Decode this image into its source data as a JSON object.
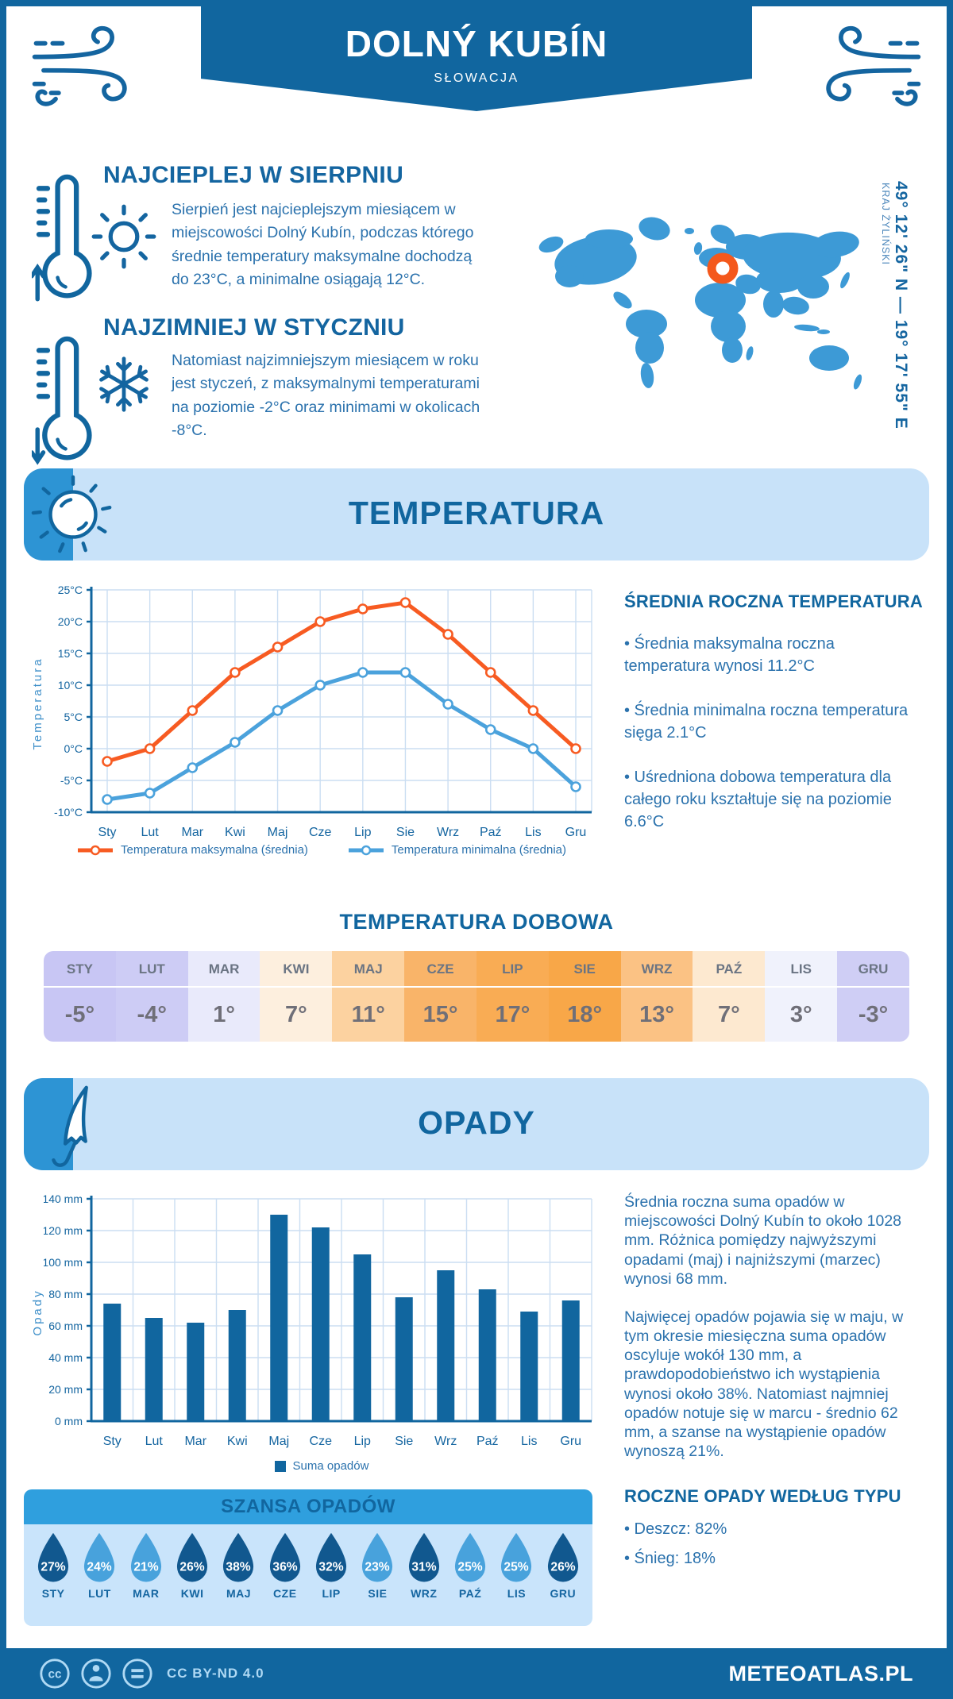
{
  "colors": {
    "brand_dark_blue": "#11669F",
    "heading_blue": "#1465A0",
    "body_text_blue": "#2B72AD",
    "band_bg": "#C8E2F9",
    "band_strip": "#2D94D4",
    "grid_line": "#CBDEF2",
    "axis_tick_text": "#1465A0",
    "rain_header_bar": "#2F9FDE",
    "rain_body_bg": "#C9E4FB"
  },
  "header": {
    "title": "DOLNÝ KUBÍN",
    "subtitle": "SŁOWACJA"
  },
  "highlights": [
    {
      "title": "NAJCIEPLEJ W SIERPNIU",
      "text": "Sierpień jest najcieplejszym miesiącem w miejscowości Dolný Kubín, podczas którego średnie temperatury maksymalne dochodzą do 23°C, a minimalne osiągają 12°C."
    },
    {
      "title": "NAJZIMNIEJ W STYCZNIU",
      "text": "Natomiast najzimniejszym miesiącem w roku jest styczeń, z maksymalnymi temperaturami na poziomie -2°C oraz minimami w okolicach -8°C."
    }
  ],
  "location": {
    "coordinates": "49° 12' 26\" N — 19° 17' 55\" E",
    "region": "KRAJ ŻYLIŃSKI",
    "map_color": "#3D9AD6",
    "marker_color": "#F4581C"
  },
  "sections": {
    "temperature_title": "TEMPERATURA",
    "precipitation_title": "OPADY"
  },
  "chart_data": [
    {
      "type": "line",
      "title": "Temperatura",
      "categories": [
        "Sty",
        "Lut",
        "Mar",
        "Kwi",
        "Maj",
        "Cze",
        "Lip",
        "Sie",
        "Wrz",
        "Paź",
        "Lis",
        "Gru"
      ],
      "series": [
        {
          "name": "Temperatura maksymalna (średnia)",
          "color": "#F75B22",
          "values": [
            -2,
            0,
            6,
            12,
            16,
            20,
            22,
            23,
            18,
            12,
            6,
            0
          ]
        },
        {
          "name": "Temperatura minimalna (średnia)",
          "color": "#4BA2DC",
          "values": [
            -8,
            -7,
            -3,
            1,
            6,
            10,
            12,
            12,
            7,
            3,
            0,
            -6
          ]
        }
      ],
      "ylabel": "Temperatura",
      "ylim": [
        -10,
        25
      ],
      "ytick_step": 5,
      "ytick_suffix": "°C",
      "grid": true,
      "legend_position": "bottom"
    },
    {
      "type": "bar",
      "title": "Opady",
      "categories": [
        "Sty",
        "Lut",
        "Mar",
        "Kwi",
        "Maj",
        "Cze",
        "Lip",
        "Sie",
        "Wrz",
        "Paź",
        "Lis",
        "Gru"
      ],
      "series": [
        {
          "name": "Suma opadów",
          "color": "#11669F",
          "values": [
            74,
            65,
            62,
            70,
            130,
            122,
            105,
            78,
            95,
            83,
            69,
            76
          ]
        }
      ],
      "ylabel": "Opady",
      "ylim": [
        0,
        140
      ],
      "ytick_step": 20,
      "ytick_suffix": " mm",
      "grid": true,
      "legend_position": "bottom"
    }
  ],
  "annual_temperature": {
    "heading": "ŚREDNIA ROCZNA TEMPERATURA",
    "bullets": [
      "• Średnia maksymalna roczna temperatura wynosi 11.2°C",
      "• Średnia minimalna roczna temperatura sięga 2.1°C",
      "• Uśredniona dobowa temperatura dla całego roku kształtuje się na poziomie 6.6°C"
    ]
  },
  "daily_table": {
    "title": "TEMPERATURA DOBOWA",
    "months": [
      "STY",
      "LUT",
      "MAR",
      "KWI",
      "MAJ",
      "CZE",
      "LIP",
      "SIE",
      "WRZ",
      "PAŹ",
      "LIS",
      "GRU"
    ],
    "values": [
      "-5°",
      "-4°",
      "1°",
      "7°",
      "11°",
      "15°",
      "17°",
      "18°",
      "13°",
      "7°",
      "3°",
      "-3°"
    ],
    "cell_colors": [
      "#C8C6F4",
      "#CDCCF5",
      "#E9EAFB",
      "#FDEFDE",
      "#FCD2A0",
      "#F9B469",
      "#F9AC54",
      "#F8A748",
      "#FBC284",
      "#FDE9D0",
      "#F0F2FC",
      "#CFCEF5"
    ]
  },
  "precip_text": {
    "paragraphs": [
      "Średnia roczna suma opadów w miejscowości Dolný Kubín to około 1028 mm. Różnica pomiędzy najwyższymi opadami (maj) i najniższymi (marzec) wynosi 68 mm.",
      "Najwięcej opadów pojawia się w maju, w tym okresie miesięczna suma opadów oscyluje wokół 130 mm, a prawdopodobieństwo ich wystąpienia wynosi około 38%. Natomiast najmniej opadów notuje się w marcu - średnio 62 mm, a szanse na wystąpienie opadów wynoszą 21%."
    ],
    "type_heading": "ROCZNE OPADY WEDŁUG TYPU",
    "type_bullets": [
      "• Deszcz: 82%",
      "• Śnieg: 18%"
    ]
  },
  "rain_chance": {
    "title": "SZANSA OPADÓW",
    "months": [
      "STY",
      "LUT",
      "MAR",
      "KWI",
      "MAJ",
      "CZE",
      "LIP",
      "SIE",
      "WRZ",
      "PAŹ",
      "LIS",
      "GRU"
    ],
    "values": [
      "27%",
      "24%",
      "21%",
      "26%",
      "38%",
      "36%",
      "32%",
      "23%",
      "31%",
      "25%",
      "25%",
      "26%"
    ],
    "shades": [
      "dark",
      "light",
      "light",
      "dark",
      "dark",
      "dark",
      "dark",
      "light",
      "dark",
      "light",
      "light",
      "dark"
    ],
    "drop_colors": {
      "dark": "#11588F",
      "light": "#48A2DC"
    }
  },
  "footer": {
    "license": "CC BY-ND 4.0",
    "brand": "METEOATLAS.PL"
  }
}
